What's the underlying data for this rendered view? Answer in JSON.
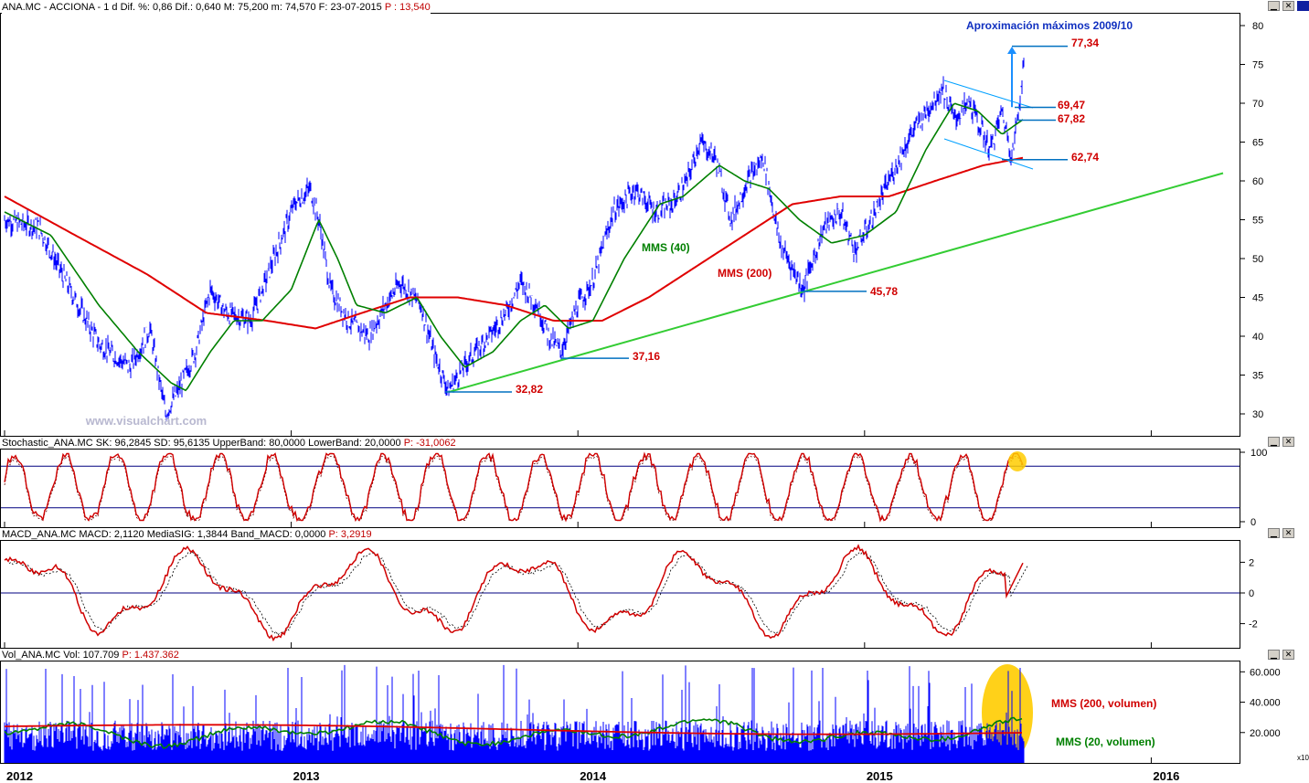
{
  "price_panel": {
    "header": {
      "symbol": "ANA.MC - ACCIONA - 1 d Dif. %: 0,86  Dif.: 0,640  M: 75,200  m: 74,570  F: 23-07-2015",
      "p_value": "P : 13,540"
    },
    "title": "Aproximación máximos 2009/10",
    "watermark": "www.visualchart.com",
    "label_mms40": "MMS (40)",
    "label_mms200": "MMS (200)",
    "levels": [
      "77,34",
      "69,47",
      "67,82",
      "62,74",
      "45,78",
      "37,16",
      "32,82"
    ],
    "y_ticks": [
      "80",
      "75",
      "70",
      "65",
      "60",
      "55",
      "50",
      "45",
      "40",
      "35",
      "30"
    ]
  },
  "stoch_panel": {
    "header": {
      "text": "Stochastic_ANA.MC  SK: 96,2845  SD: 95,6135  UpperBand: 80,0000  LowerBand: 20,0000",
      "p_value": "P: -31,0062"
    },
    "y_ticks": [
      "100",
      "0"
    ]
  },
  "macd_panel": {
    "header": {
      "text": "MACD_ANA.MC  MACD: 2,1120  MediaSIG: 1,3844  Band_MACD: 0,0000",
      "p_value": "P: 3,2919"
    },
    "y_ticks": [
      "2",
      "0",
      "-2"
    ]
  },
  "vol_panel": {
    "header": {
      "text": "Vol_ANA.MC  Vol: 107.709",
      "p_value": "P: 1.437.362"
    },
    "label_mms200": "MMS (200, volumen)",
    "label_mms20": "MMS (20, volumen)",
    "y_ticks": [
      "60.000",
      "40.000",
      "20.000"
    ],
    "scale_badge": "x10"
  },
  "x_ticks": [
    "2012",
    "2013",
    "2014",
    "2015",
    "2016"
  ],
  "colors": {
    "price": "#0000ff",
    "mms40": "#008000",
    "mms200": "#e00000",
    "trend_green": "#33cc33",
    "level_blue": "#0070c0",
    "level_text": "#d00000",
    "channel": "#00a0ff",
    "highlight": "#ffcc00"
  },
  "chart_data": [
    {
      "type": "line",
      "panel": "price",
      "x_range": [
        "2012-01-02",
        "2016-05-15"
      ],
      "ylim": [
        28,
        82
      ],
      "series": [
        {
          "name": "ANA.MC",
          "points": [
            [
              "2012-01-02",
              55
            ],
            [
              "2012-02-15",
              54
            ],
            [
              "2012-03-20",
              47
            ],
            [
              "2012-05-01",
              39
            ],
            [
              "2012-06-10",
              36
            ],
            [
              "2012-07-05",
              41
            ],
            [
              "2012-07-25",
              30
            ],
            [
              "2012-08-10",
              33
            ],
            [
              "2012-09-01",
              38
            ],
            [
              "2012-09-20",
              46
            ],
            [
              "2012-10-10",
              43
            ],
            [
              "2012-11-10",
              42
            ],
            [
              "2012-12-10",
              50
            ],
            [
              "2013-01-05",
              57
            ],
            [
              "2013-01-25",
              59
            ],
            [
              "2013-02-05",
              55
            ],
            [
              "2013-02-20",
              46
            ],
            [
              "2013-03-15",
              42
            ],
            [
              "2013-04-10",
              40
            ],
            [
              "2013-05-01",
              44
            ],
            [
              "2013-05-20",
              47
            ],
            [
              "2013-06-15",
              44
            ],
            [
              "2013-07-01",
              38
            ],
            [
              "2013-07-20",
              33
            ],
            [
              "2013-08-15",
              37
            ],
            [
              "2013-09-10",
              40
            ],
            [
              "2013-10-01",
              43
            ],
            [
              "2013-10-20",
              47
            ],
            [
              "2013-11-10",
              44
            ],
            [
              "2013-11-25",
              40
            ],
            [
              "2013-12-10",
              38
            ],
            [
              "2014-01-01",
              44
            ],
            [
              "2014-01-20",
              47
            ],
            [
              "2014-02-15",
              56
            ],
            [
              "2014-03-15",
              59
            ],
            [
              "2014-04-10",
              56
            ],
            [
              "2014-05-01",
              57
            ],
            [
              "2014-05-20",
              60
            ],
            [
              "2014-06-05",
              65
            ],
            [
              "2014-06-25",
              63
            ],
            [
              "2014-07-15",
              55
            ],
            [
              "2014-08-05",
              60
            ],
            [
              "2014-08-25",
              63
            ],
            [
              "2014-09-15",
              52
            ],
            [
              "2014-10-15",
              46
            ],
            [
              "2014-11-10",
              54
            ],
            [
              "2014-12-01",
              56
            ],
            [
              "2014-12-20",
              51
            ],
            [
              "2015-01-10",
              55
            ],
            [
              "2015-02-01",
              60
            ],
            [
              "2015-03-01",
              66
            ],
            [
              "2015-04-10",
              72
            ],
            [
              "2015-04-25",
              68
            ],
            [
              "2015-05-15",
              70
            ],
            [
              "2015-06-10",
              64
            ],
            [
              "2015-06-25",
              69
            ],
            [
              "2015-07-08",
              63
            ],
            [
              "2015-07-23",
              75
            ]
          ]
        },
        {
          "name": "MMS (40)",
          "points": [
            [
              "2012-01-02",
              56
            ],
            [
              "2012-03-01",
              53
            ],
            [
              "2012-05-01",
              44
            ],
            [
              "2012-06-20",
              38
            ],
            [
              "2012-08-01",
              34
            ],
            [
              "2012-08-20",
              33
            ],
            [
              "2012-09-20",
              38
            ],
            [
              "2012-10-20",
              42
            ],
            [
              "2012-11-25",
              42
            ],
            [
              "2013-01-01",
              46
            ],
            [
              "2013-02-05",
              55
            ],
            [
              "2013-03-01",
              50
            ],
            [
              "2013-03-25",
              44
            ],
            [
              "2013-05-01",
              43
            ],
            [
              "2013-06-10",
              45
            ],
            [
              "2013-07-10",
              40
            ],
            [
              "2013-08-10",
              36
            ],
            [
              "2013-09-15",
              38
            ],
            [
              "2013-10-20",
              42
            ],
            [
              "2013-11-20",
              44
            ],
            [
              "2013-12-20",
              41
            ],
            [
              "2014-01-20",
              42
            ],
            [
              "2014-03-01",
              50
            ],
            [
              "2014-04-15",
              57
            ],
            [
              "2014-05-15",
              58
            ],
            [
              "2014-06-30",
              62
            ],
            [
              "2014-08-01",
              60
            ],
            [
              "2014-09-01",
              59
            ],
            [
              "2014-10-10",
              55
            ],
            [
              "2014-11-20",
              52
            ],
            [
              "2015-01-01",
              53
            ],
            [
              "2015-02-10",
              56
            ],
            [
              "2015-03-20",
              64
            ],
            [
              "2015-04-25",
              70
            ],
            [
              "2015-05-25",
              69
            ],
            [
              "2015-06-25",
              66
            ],
            [
              "2015-07-23",
              68
            ]
          ]
        },
        {
          "name": "MMS (200)",
          "points": [
            [
              "2012-01-02",
              58
            ],
            [
              "2012-04-01",
              53
            ],
            [
              "2012-07-01",
              48
            ],
            [
              "2012-09-15",
              43
            ],
            [
              "2012-12-01",
              42
            ],
            [
              "2013-02-01",
              41
            ],
            [
              "2013-04-01",
              43
            ],
            [
              "2013-06-01",
              45
            ],
            [
              "2013-08-01",
              45
            ],
            [
              "2013-10-01",
              44
            ],
            [
              "2013-12-01",
              42
            ],
            [
              "2014-02-01",
              42
            ],
            [
              "2014-04-01",
              45
            ],
            [
              "2014-06-01",
              49
            ],
            [
              "2014-08-01",
              53
            ],
            [
              "2014-10-01",
              57
            ],
            [
              "2014-12-01",
              58
            ],
            [
              "2015-02-01",
              58
            ],
            [
              "2015-04-01",
              60
            ],
            [
              "2015-06-01",
              62
            ],
            [
              "2015-07-23",
              63
            ]
          ]
        }
      ]
    },
    {
      "type": "line",
      "panel": "stochastic",
      "ylim": [
        0,
        100
      ],
      "bands": [
        20,
        80
      ],
      "series": [
        {
          "name": "SK",
          "last": 96.2845
        },
        {
          "name": "SD",
          "last": 95.6135
        }
      ]
    },
    {
      "type": "line",
      "panel": "macd",
      "ylim": [
        -3.5,
        3.5
      ],
      "series": [
        {
          "name": "MACD",
          "last": 2.112
        },
        {
          "name": "MediaSIG",
          "last": 1.3844
        }
      ]
    },
    {
      "type": "bar",
      "panel": "volume",
      "ylim": [
        0,
        65000
      ],
      "series": [
        {
          "name": "Vol",
          "last": 107709
        },
        {
          "name": "MMS (200, volumen)",
          "last": 21000
        },
        {
          "name": "MMS (20, volumen)",
          "last": 30000
        }
      ]
    }
  ]
}
